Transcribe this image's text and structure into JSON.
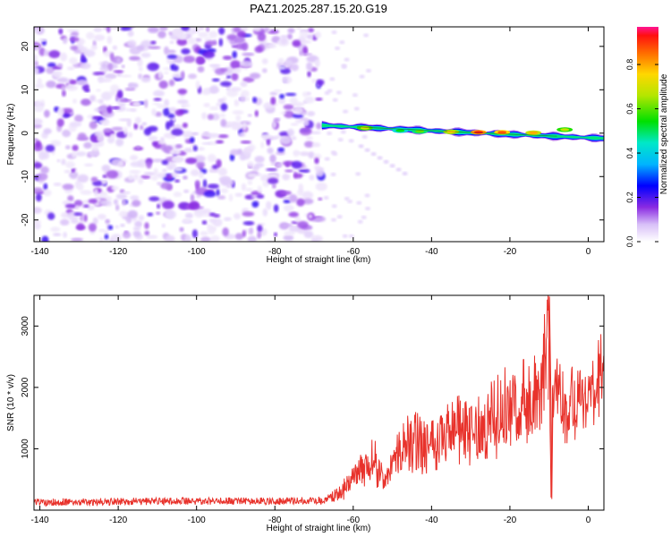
{
  "chart_data": [
    {
      "type": "heatmap",
      "title": "PAZ1.2025.287.15.20.G19",
      "xlabel": "Height of straight line (km)",
      "ylabel": "Frequency (Hz)",
      "xlim": [
        -141.5,
        4
      ],
      "ylim": [
        -25,
        24.5
      ],
      "x_ticks": [
        -140,
        -120,
        -100,
        -80,
        -60,
        -40,
        -20,
        0
      ],
      "y_ticks": [
        -20,
        -10,
        0,
        10,
        20
      ],
      "noise_region": {
        "x_from": -141.5,
        "x_to": -68,
        "description_level": 0.1
      },
      "signal_band": {
        "x_from": -68,
        "x_to": 4,
        "freq_start": 1.8,
        "freq_mid": 0.2,
        "freq_end": -1.2
      },
      "hot_spots": [
        {
          "x": -57,
          "freq": 1.2,
          "level": 0.72
        },
        {
          "x": -48,
          "freq": 0.6,
          "level": 0.55
        },
        {
          "x": -43,
          "freq": 0.4,
          "level": 0.62
        },
        {
          "x": -35,
          "freq": 0.3,
          "level": 0.78
        },
        {
          "x": -28,
          "freq": 0.2,
          "level": 0.95
        },
        {
          "x": -22,
          "freq": 0.2,
          "level": 0.9
        },
        {
          "x": -14,
          "freq": 0.1,
          "level": 0.82
        },
        {
          "x": -6,
          "freq": 0.8,
          "level": 0.7
        }
      ],
      "colorbar": {
        "label": "Normalized spectral amplitude",
        "range": [
          0,
          0.97
        ],
        "ticks": [
          0.0,
          0.2,
          0.4,
          0.6,
          0.8
        ],
        "tick_labels": [
          "0.0",
          "0.2",
          "0.4",
          "0.6",
          "0.8"
        ]
      }
    },
    {
      "type": "line",
      "xlabel": "Height of straight line (km)",
      "ylabel": "SNR (10 * v/v)",
      "xlim": [
        -141.5,
        4
      ],
      "ylim": [
        0,
        3500
      ],
      "x_ticks": [
        -140,
        -120,
        -100,
        -80,
        -60,
        -40,
        -20,
        0
      ],
      "y_ticks": [
        1000,
        2000,
        3000
      ],
      "color": "#e8322b",
      "series": [
        {
          "name": "SNR",
          "x": [
            -141.5,
            -120,
            -100,
            -80,
            -68,
            -64,
            -61,
            -58,
            -55,
            -52,
            -48,
            -44,
            -40,
            -36,
            -32,
            -28,
            -24,
            -20,
            -16,
            -14,
            -12,
            -10,
            -9.5,
            -9,
            -6,
            -3,
            0,
            2,
            4
          ],
          "y": [
            130,
            140,
            150,
            145,
            160,
            250,
            450,
            650,
            850,
            450,
            1000,
            1100,
            1150,
            1250,
            1350,
            1300,
            1450,
            1600,
            1650,
            2000,
            1700,
            3300,
            200,
            1900,
            1750,
            1900,
            2000,
            1800,
            2600
          ]
        }
      ]
    }
  ]
}
